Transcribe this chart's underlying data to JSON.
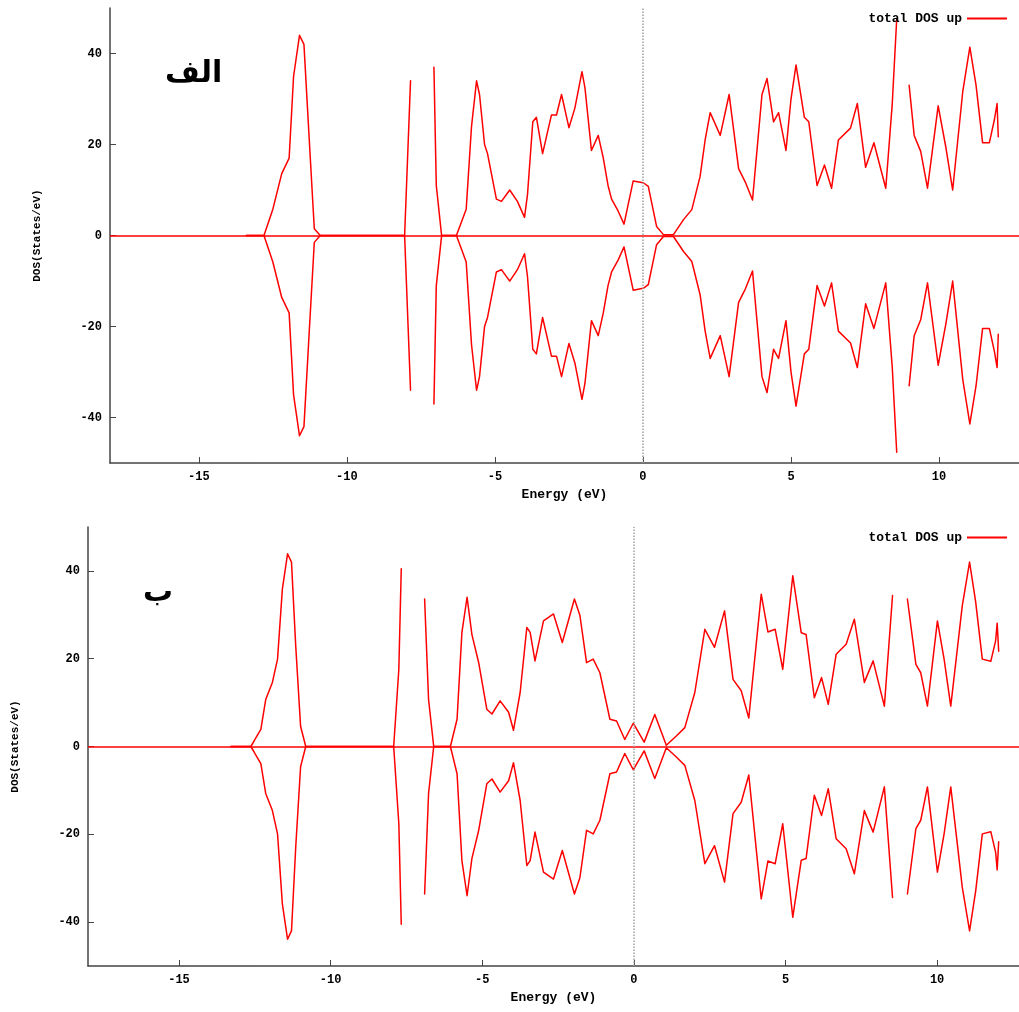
{
  "chart_data": [
    {
      "type": "line",
      "xlabel": "Energy (eV)",
      "ylabel": "DOS(States/eV)",
      "annotations": [
        "الف"
      ],
      "xlim": [
        -18,
        12.7
      ],
      "xticks": [
        -15,
        -10,
        -5,
        0,
        5,
        10
      ],
      "ylim": [
        -50,
        50
      ],
      "yticks": [
        -40,
        -20,
        0,
        20,
        40
      ],
      "grid": false,
      "legend": "top right",
      "marker": "none",
      "line_style": "solid",
      "ref_lines": [
        {
          "axis": "y",
          "value": 0,
          "color": "#ff0000",
          "line_style": "solid"
        },
        {
          "axis": "x",
          "value": 0,
          "color": "#a0a0a0",
          "line_style": "dotted"
        }
      ],
      "series": [
        {
          "name": "total DOS up",
          "color": "#ff0000",
          "x": [
            -13.4,
            -12.8,
            -12.5,
            -12.2,
            -11.95,
            -11.8,
            -11.6,
            -11.45,
            -11.27,
            -11.1,
            -10.9,
            -10.5,
            -8.05,
            -7.85,
            -7.75,
            -7.12,
            -7.06,
            -6.98,
            -6.8,
            -6.3,
            -5.97,
            -5.79,
            -5.62,
            -5.52,
            -5.35,
            -5.25,
            -4.95,
            -4.78,
            -4.5,
            -4.24,
            -4.0,
            -3.9,
            -3.72,
            -3.6,
            -3.39,
            -3.09,
            -2.92,
            -2.75,
            -2.5,
            -2.3,
            -2.06,
            -1.96,
            -1.74,
            -1.51,
            -1.34,
            -1.18,
            -1.06,
            -0.84,
            -0.64,
            -0.33,
            0.01,
            0.18,
            0.46,
            0.69,
            1.03,
            1.37,
            1.65,
            1.93,
            2.1,
            2.27,
            2.61,
            2.91,
            3.23,
            3.46,
            3.7,
            4.02,
            4.19,
            4.41,
            4.58,
            4.83,
            5.0,
            5.17,
            5.45,
            5.6,
            5.88,
            6.13,
            6.37,
            6.6,
            7.01,
            7.24,
            7.52,
            7.8,
            8.2,
            8.42,
            8.57,
            8.62,
            8.78,
            8.99,
            9.16,
            9.38,
            9.61,
            9.97,
            10.23,
            10.46,
            10.8,
            11.04,
            11.25,
            11.47,
            11.7,
            11.87,
            11.96,
            12.0
          ],
          "values": [
            0,
            0,
            5.8,
            13.6,
            17,
            35,
            44,
            42,
            21,
            1.5,
            0,
            0,
            0,
            34,
            null,
            null,
            37,
            11,
            0,
            0,
            5.8,
            24,
            34,
            31,
            20,
            18,
            8,
            7.5,
            10,
            7.5,
            4,
            9,
            25,
            26,
            18,
            26.5,
            26.5,
            31,
            23.7,
            28,
            36,
            32.5,
            18.7,
            22,
            17,
            11,
            8,
            5.4,
            2.5,
            12,
            11.6,
            10.8,
            2,
            0.2,
            0.2,
            3.5,
            5.7,
            13,
            21,
            27,
            22,
            31,
            14.7,
            11.7,
            7.8,
            31,
            34.5,
            25,
            27,
            18.7,
            30,
            37.5,
            26,
            25,
            11,
            15.5,
            10.4,
            21,
            23.6,
            29,
            15,
            20.4,
            10.4,
            29,
            47.6,
            null,
            null,
            33,
            22,
            18.5,
            10.4,
            28.5,
            19.4,
            10,
            31.6,
            41.4,
            33,
            20.4,
            20.4,
            25.5,
            29,
            21.7
          ]
        },
        {
          "color": "#ff0000",
          "x": [
            -13.4,
            -12.8,
            -12.5,
            -12.2,
            -11.95,
            -11.8,
            -11.6,
            -11.45,
            -11.27,
            -11.1,
            -10.9,
            -10.5,
            -8.05,
            -7.85,
            -7.75,
            -7.12,
            -7.06,
            -6.98,
            -6.8,
            -6.3,
            -5.97,
            -5.79,
            -5.62,
            -5.52,
            -5.35,
            -5.25,
            -4.95,
            -4.78,
            -4.5,
            -4.24,
            -4.0,
            -3.9,
            -3.72,
            -3.6,
            -3.39,
            -3.09,
            -2.92,
            -2.75,
            -2.5,
            -2.3,
            -2.06,
            -1.96,
            -1.74,
            -1.51,
            -1.34,
            -1.18,
            -1.06,
            -0.84,
            -0.64,
            -0.33,
            0.01,
            0.18,
            0.46,
            0.69,
            1.03,
            1.37,
            1.65,
            1.93,
            2.1,
            2.27,
            2.61,
            2.91,
            3.23,
            3.46,
            3.7,
            4.02,
            4.19,
            4.41,
            4.58,
            4.83,
            5.0,
            5.17,
            5.45,
            5.6,
            5.88,
            6.13,
            6.37,
            6.6,
            7.01,
            7.24,
            7.52,
            7.8,
            8.2,
            8.42,
            8.57,
            8.62,
            8.78,
            8.99,
            9.16,
            9.38,
            9.61,
            9.97,
            10.23,
            10.46,
            10.8,
            11.04,
            11.25,
            11.47,
            11.7,
            11.87,
            11.96,
            12.0
          ],
          "values": [
            0,
            0,
            -5.8,
            -13.6,
            -17,
            -35,
            -44,
            -42,
            -21,
            -1.5,
            0,
            0,
            0,
            -34,
            null,
            null,
            -37,
            -11,
            0,
            0,
            -5.8,
            -24,
            -34,
            -31,
            -20,
            -18,
            -8,
            -7.5,
            -10,
            -7.5,
            -4,
            -9,
            -25,
            -26,
            -18,
            -26.5,
            -26.5,
            -31,
            -23.7,
            -28,
            -36,
            -32.5,
            -18.7,
            -22,
            -17,
            -11,
            -8,
            -5.4,
            -2.5,
            -12,
            -11.6,
            -10.8,
            -2,
            -0.2,
            -0.2,
            -3.5,
            -5.7,
            -13,
            -21,
            -27,
            -22,
            -31,
            -14.7,
            -11.7,
            -7.8,
            -31,
            -34.5,
            -25,
            -27,
            -18.7,
            -30,
            -37.5,
            -26,
            -25,
            -11,
            -15.5,
            -10.4,
            -21,
            -23.6,
            -29,
            -15,
            -20.4,
            -10.4,
            -29,
            -47.6,
            null,
            null,
            -33,
            -22,
            -18.5,
            -10.4,
            -28.5,
            -19.4,
            -10,
            -31.6,
            -41.4,
            -33,
            -20.4,
            -20.4,
            -25.5,
            -29,
            -21.7
          ]
        }
      ]
    },
    {
      "type": "line",
      "xlabel": "Energy (eV)",
      "ylabel": "DOS(States/eV)",
      "annotations": [
        "ب"
      ],
      "xlim": [
        -18,
        12.7
      ],
      "xticks": [
        -15,
        -10,
        -5,
        0,
        5,
        10
      ],
      "ylim": [
        -50,
        50
      ],
      "yticks": [
        -40,
        -20,
        0,
        20,
        40
      ],
      "grid": false,
      "legend": "top right",
      "marker": "none",
      "line_style": "solid",
      "ref_lines": [
        {
          "axis": "y",
          "value": 0,
          "color": "#ff0000",
          "line_style": "solid"
        },
        {
          "axis": "x",
          "value": 0,
          "color": "#a0a0a0",
          "line_style": "dotted"
        }
      ],
      "series": [
        {
          "name": "total DOS up",
          "color": "#ff0000",
          "x": [
            -13.29,
            -12.63,
            -12.3,
            -12.14,
            -11.92,
            -11.75,
            -11.59,
            -11.42,
            -11.29,
            -11.15,
            -10.99,
            -10.82,
            -10.5,
            -8.41,
            -7.92,
            -7.75,
            -7.67,
            -7.62,
            -6.95,
            -6.9,
            -6.77,
            -6.6,
            -6.05,
            -5.83,
            -5.67,
            -5.5,
            -5.34,
            -5.12,
            -4.85,
            -4.68,
            -4.41,
            -4.13,
            -3.97,
            -3.75,
            -3.53,
            -3.42,
            -3.26,
            -2.98,
            -2.65,
            -2.36,
            -1.96,
            -1.78,
            -1.56,
            -1.34,
            -1.12,
            -0.79,
            -0.57,
            -0.3,
            -0.02,
            0.34,
            0.69,
            1.07,
            1.4,
            1.68,
            2.01,
            2.34,
            2.66,
            2.99,
            3.27,
            3.54,
            3.79,
            4.2,
            4.42,
            4.66,
            4.91,
            5.24,
            5.52,
            5.68,
            5.95,
            6.19,
            6.41,
            6.67,
            7.0,
            7.27,
            7.6,
            7.89,
            8.26,
            8.53,
            8.64,
            8.91,
            9.02,
            9.3,
            9.46,
            9.68,
            10.01,
            10.23,
            10.45,
            10.83,
            11.07,
            11.27,
            11.49,
            11.77,
            11.93,
            11.98,
            12.03
          ],
          "values": [
            0,
            0,
            3.9,
            10.7,
            14.6,
            19.9,
            35.9,
            43.9,
            42,
            22.9,
            4.6,
            0,
            0,
            0,
            0,
            17.6,
            40.5,
            null,
            null,
            33.6,
            10.7,
            0,
            0,
            6.2,
            26,
            34,
            25.5,
            19.2,
            8.5,
            7.4,
            10.4,
            7.8,
            3.7,
            12.3,
            27.1,
            26,
            19.5,
            28.6,
            30.2,
            23.7,
            33.6,
            29.9,
            19.1,
            19.9,
            16.8,
            6.2,
            5.8,
            1.6,
            5.3,
            1,
            7.3,
            0.3,
            2.4,
            4.3,
            12.3,
            26.7,
            22.6,
            30.9,
            15.3,
            12.7,
            6.5,
            34.7,
            26.1,
            26.7,
            17.6,
            38.9,
            25.9,
            25.5,
            11.1,
            15.7,
            9.6,
            21,
            23.3,
            29,
            14.6,
            19.5,
            9.2,
            34.4,
            null,
            null,
            33.6,
            18.7,
            16.8,
            9.2,
            28.6,
            19.9,
            9.2,
            32.1,
            42,
            33,
            19.9,
            19.4,
            24.1,
            28.1,
            21.7
          ]
        },
        {
          "color": "#ff0000",
          "x": [
            -13.29,
            -12.63,
            -12.3,
            -12.14,
            -11.92,
            -11.75,
            -11.59,
            -11.42,
            -11.29,
            -11.15,
            -10.99,
            -10.82,
            -10.5,
            -8.41,
            -7.92,
            -7.75,
            -7.67,
            -7.62,
            -6.95,
            -6.9,
            -6.77,
            -6.6,
            -6.05,
            -5.83,
            -5.67,
            -5.5,
            -5.34,
            -5.12,
            -4.85,
            -4.68,
            -4.41,
            -4.13,
            -3.97,
            -3.75,
            -3.53,
            -3.42,
            -3.26,
            -2.98,
            -2.65,
            -2.36,
            -1.96,
            -1.78,
            -1.56,
            -1.34,
            -1.12,
            -0.79,
            -0.57,
            -0.3,
            -0.02,
            0.34,
            0.69,
            1.07,
            1.4,
            1.68,
            2.01,
            2.34,
            2.66,
            2.99,
            3.27,
            3.54,
            3.79,
            4.2,
            4.42,
            4.66,
            4.91,
            5.24,
            5.52,
            5.68,
            5.95,
            6.19,
            6.41,
            6.67,
            7.0,
            7.27,
            7.6,
            7.89,
            8.26,
            8.53,
            8.64,
            8.91,
            9.02,
            9.3,
            9.46,
            9.68,
            10.01,
            10.23,
            10.45,
            10.83,
            11.07,
            11.27,
            11.49,
            11.77,
            11.93,
            11.98,
            12.03
          ],
          "values": [
            0,
            0,
            -3.9,
            -10.7,
            -14.6,
            -19.9,
            -35.9,
            -43.9,
            -42,
            -22.9,
            -4.6,
            0,
            0,
            0,
            0,
            -17.6,
            -40.5,
            null,
            null,
            -33.6,
            -10.7,
            0,
            0,
            -6.2,
            -26,
            -34,
            -25.5,
            -19.2,
            -8.5,
            -7.4,
            -10.4,
            -7.8,
            -3.7,
            -12.3,
            -27.1,
            -26,
            -19.5,
            -28.6,
            -30.2,
            -23.7,
            -33.6,
            -29.9,
            -19.1,
            -19.9,
            -16.8,
            -6.2,
            -5.8,
            -1.6,
            -5.3,
            -1,
            -7.3,
            -0.3,
            -2.4,
            -4.3,
            -12.3,
            -26.7,
            -22.6,
            -30.9,
            -15.3,
            -12.7,
            -6.5,
            -34.7,
            -26.1,
            -26.7,
            -17.6,
            -38.9,
            -25.9,
            -25.5,
            -11.1,
            -15.7,
            -9.6,
            -21,
            -23.3,
            -29,
            -14.6,
            -19.5,
            -9.2,
            -34.4,
            null,
            null,
            -33.6,
            -18.7,
            -16.8,
            -9.2,
            -28.6,
            -19.9,
            -9.2,
            -32.1,
            -42,
            -33,
            -19.9,
            -19.4,
            -24.1,
            -28.1,
            -21.7
          ]
        }
      ]
    }
  ]
}
